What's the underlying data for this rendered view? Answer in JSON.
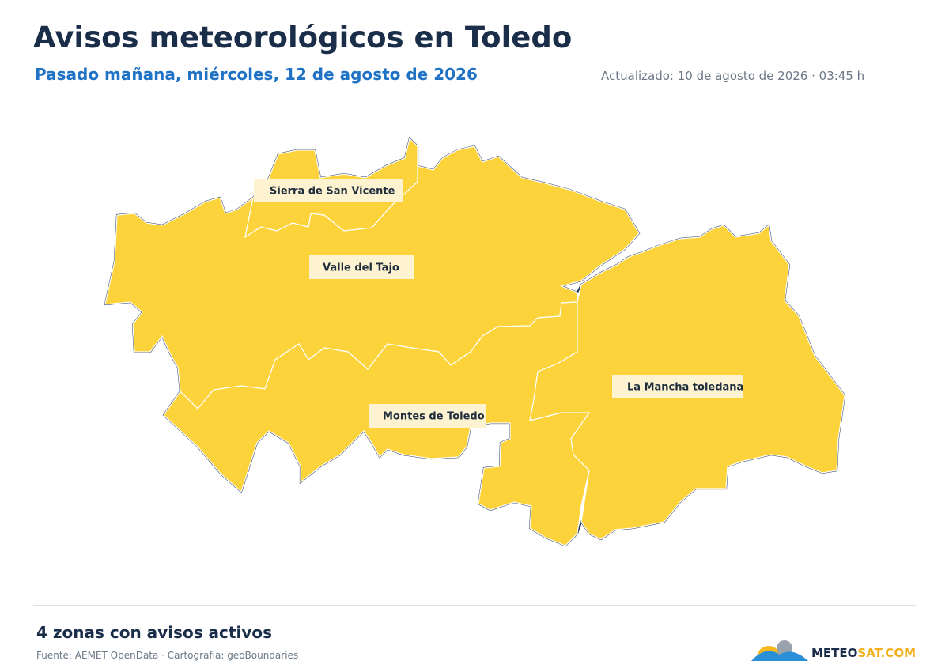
{
  "header": {
    "title": "Avisos meteorológicos en Toledo",
    "subtitle": "Pasado mañana, miércoles, 12 de agosto de 2026",
    "updated": "Actualizado: 10 de agosto de 2026 · 03:45 h"
  },
  "zones": [
    {
      "label": "Sierra de San Vicente"
    },
    {
      "label": "Valle del Tajo"
    },
    {
      "label": "Montes de Toledo"
    },
    {
      "label": "La Mancha toledana"
    }
  ],
  "footer": {
    "summary": "4 zonas con avisos activos",
    "source": "Fuente: AEMET OpenData · Cartografía: geoBoundaries"
  },
  "logo": {
    "part1": "METEO",
    "part2": "SAT.COM"
  }
}
